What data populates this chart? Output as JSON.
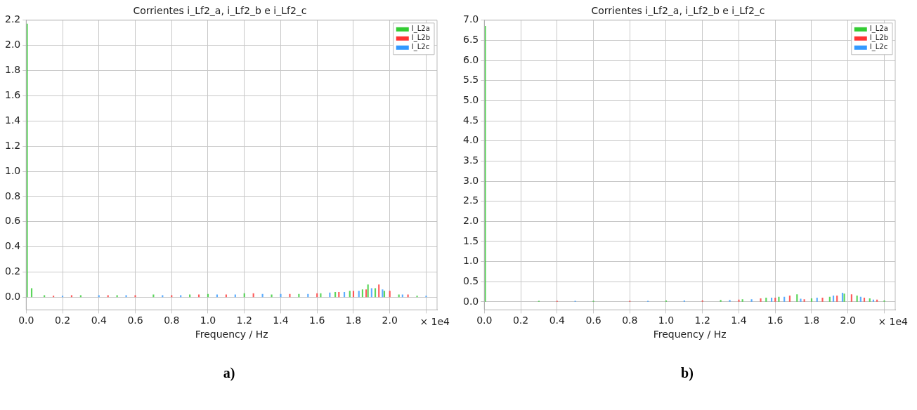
{
  "chart_data": [
    {
      "type": "bar",
      "title": "Corrientes i_Lf2_a, i_Lf2_b e i_Lf2_c",
      "xlabel": "Frequency / Hz",
      "legend": "top right",
      "grid": true,
      "xlim": [
        0,
        2.26
      ],
      "xticks": [
        {
          "value": 0,
          "label": "0.0"
        },
        0.2,
        0.4,
        0.6,
        0.8,
        {
          "value": 1,
          "label": "1.0"
        },
        1.2,
        1.4,
        1.6,
        1.8,
        {
          "value": 2,
          "label": "2.0"
        },
        {
          "value": 2.2,
          "label": null
        }
      ],
      "ylim": [
        -0.1,
        2.2
      ],
      "yticks": [
        {
          "value": 0,
          "label": "0.0"
        },
        0.2,
        0.4,
        0.6,
        0.8,
        {
          "value": 1,
          "label": "1.0"
        },
        1.2,
        1.4,
        1.6,
        1.8,
        {
          "value": 2,
          "label": "2.0"
        },
        2.2
      ],
      "annotations": [
        "× 1e4",
        "a)"
      ],
      "series": [
        {
          "name": "I_L2a",
          "color": "#33cc33",
          "x": [
            0.005,
            0.03,
            0.1,
            0.3,
            0.5,
            0.7,
            0.9,
            1.0,
            1.2,
            1.35,
            1.5,
            1.62,
            1.7,
            1.78,
            1.85,
            1.88,
            1.92,
            1.97,
            2.05,
            2.15
          ],
          "values": [
            2.17,
            0.07,
            0.015,
            0.015,
            0.015,
            0.02,
            0.02,
            0.025,
            0.03,
            0.02,
            0.025,
            0.03,
            0.04,
            0.05,
            0.06,
            0.1,
            0.07,
            0.05,
            0.02,
            0.01
          ]
        },
        {
          "name": "I_L2b",
          "color": "#ff3333",
          "x": [
            0.15,
            0.25,
            0.45,
            0.6,
            0.8,
            0.95,
            1.1,
            1.25,
            1.45,
            1.6,
            1.72,
            1.8,
            1.87,
            1.94,
            2.0,
            2.1
          ],
          "values": [
            0.01,
            0.015,
            0.015,
            0.015,
            0.015,
            0.02,
            0.02,
            0.03,
            0.025,
            0.03,
            0.04,
            0.05,
            0.06,
            0.1,
            0.05,
            0.02
          ]
        },
        {
          "name": "I_L2c",
          "color": "#3399ff",
          "x": [
            0.2,
            0.4,
            0.55,
            0.75,
            0.85,
            1.05,
            1.15,
            1.3,
            1.4,
            1.55,
            1.67,
            1.75,
            1.83,
            1.9,
            1.96,
            2.07,
            2.2
          ],
          "values": [
            0.01,
            0.015,
            0.015,
            0.015,
            0.015,
            0.02,
            0.02,
            0.025,
            0.025,
            0.025,
            0.035,
            0.04,
            0.05,
            0.07,
            0.06,
            0.02,
            0.01
          ]
        }
      ]
    },
    {
      "type": "bar",
      "title": "Corrientes i_Lf2_a, i_Lf2_b e i_Lf2_c",
      "xlabel": "Frequency / Hz",
      "legend": "top right",
      "grid": true,
      "xlim": [
        0,
        2.26
      ],
      "xticks": [
        {
          "value": 0,
          "label": "0.0"
        },
        0.2,
        0.4,
        0.6,
        0.8,
        {
          "value": 1,
          "label": "1.0"
        },
        1.2,
        1.4,
        1.6,
        1.8,
        {
          "value": 2,
          "label": "2.0"
        },
        {
          "value": 2.2,
          "label": null
        }
      ],
      "ylim": [
        -0.2,
        7.0
      ],
      "yticks": [
        {
          "value": 0,
          "label": "0.0"
        },
        0.5,
        {
          "value": 1,
          "label": "1.0"
        },
        1.5,
        {
          "value": 2,
          "label": "2.0"
        },
        2.5,
        {
          "value": 3,
          "label": "3.0"
        },
        3.5,
        {
          "value": 4,
          "label": "4.0"
        },
        4.5,
        {
          "value": 5,
          "label": "5.0"
        },
        5.5,
        {
          "value": 6,
          "label": "6.0"
        },
        6.5,
        {
          "value": 7,
          "label": "7.0"
        }
      ],
      "annotations": [
        "× 1e4",
        "b)"
      ],
      "series": [
        {
          "name": "I_L2a",
          "color": "#33cc33",
          "x": [
            0.005,
            0.3,
            0.6,
            1.0,
            1.3,
            1.42,
            1.55,
            1.62,
            1.72,
            1.8,
            1.9,
            1.98,
            2.05,
            2.12,
            2.2
          ],
          "values": [
            6.85,
            0.02,
            0.02,
            0.03,
            0.04,
            0.06,
            0.1,
            0.12,
            0.18,
            0.08,
            0.12,
            0.2,
            0.15,
            0.08,
            0.03
          ]
        },
        {
          "name": "I_L2b",
          "color": "#ff3333",
          "x": [
            0.4,
            0.8,
            1.2,
            1.4,
            1.52,
            1.6,
            1.68,
            1.76,
            1.86,
            1.94,
            2.02,
            2.09,
            2.16
          ],
          "values": [
            0.02,
            0.02,
            0.03,
            0.05,
            0.08,
            0.1,
            0.15,
            0.06,
            0.1,
            0.15,
            0.18,
            0.1,
            0.05
          ]
        },
        {
          "name": "I_L2c",
          "color": "#3399ff",
          "x": [
            0.5,
            0.9,
            1.1,
            1.35,
            1.47,
            1.58,
            1.65,
            1.74,
            1.83,
            1.92,
            1.97,
            2.07,
            2.14
          ],
          "values": [
            0.02,
            0.02,
            0.03,
            0.04,
            0.06,
            0.1,
            0.12,
            0.07,
            0.1,
            0.15,
            0.22,
            0.12,
            0.05
          ]
        }
      ]
    }
  ]
}
